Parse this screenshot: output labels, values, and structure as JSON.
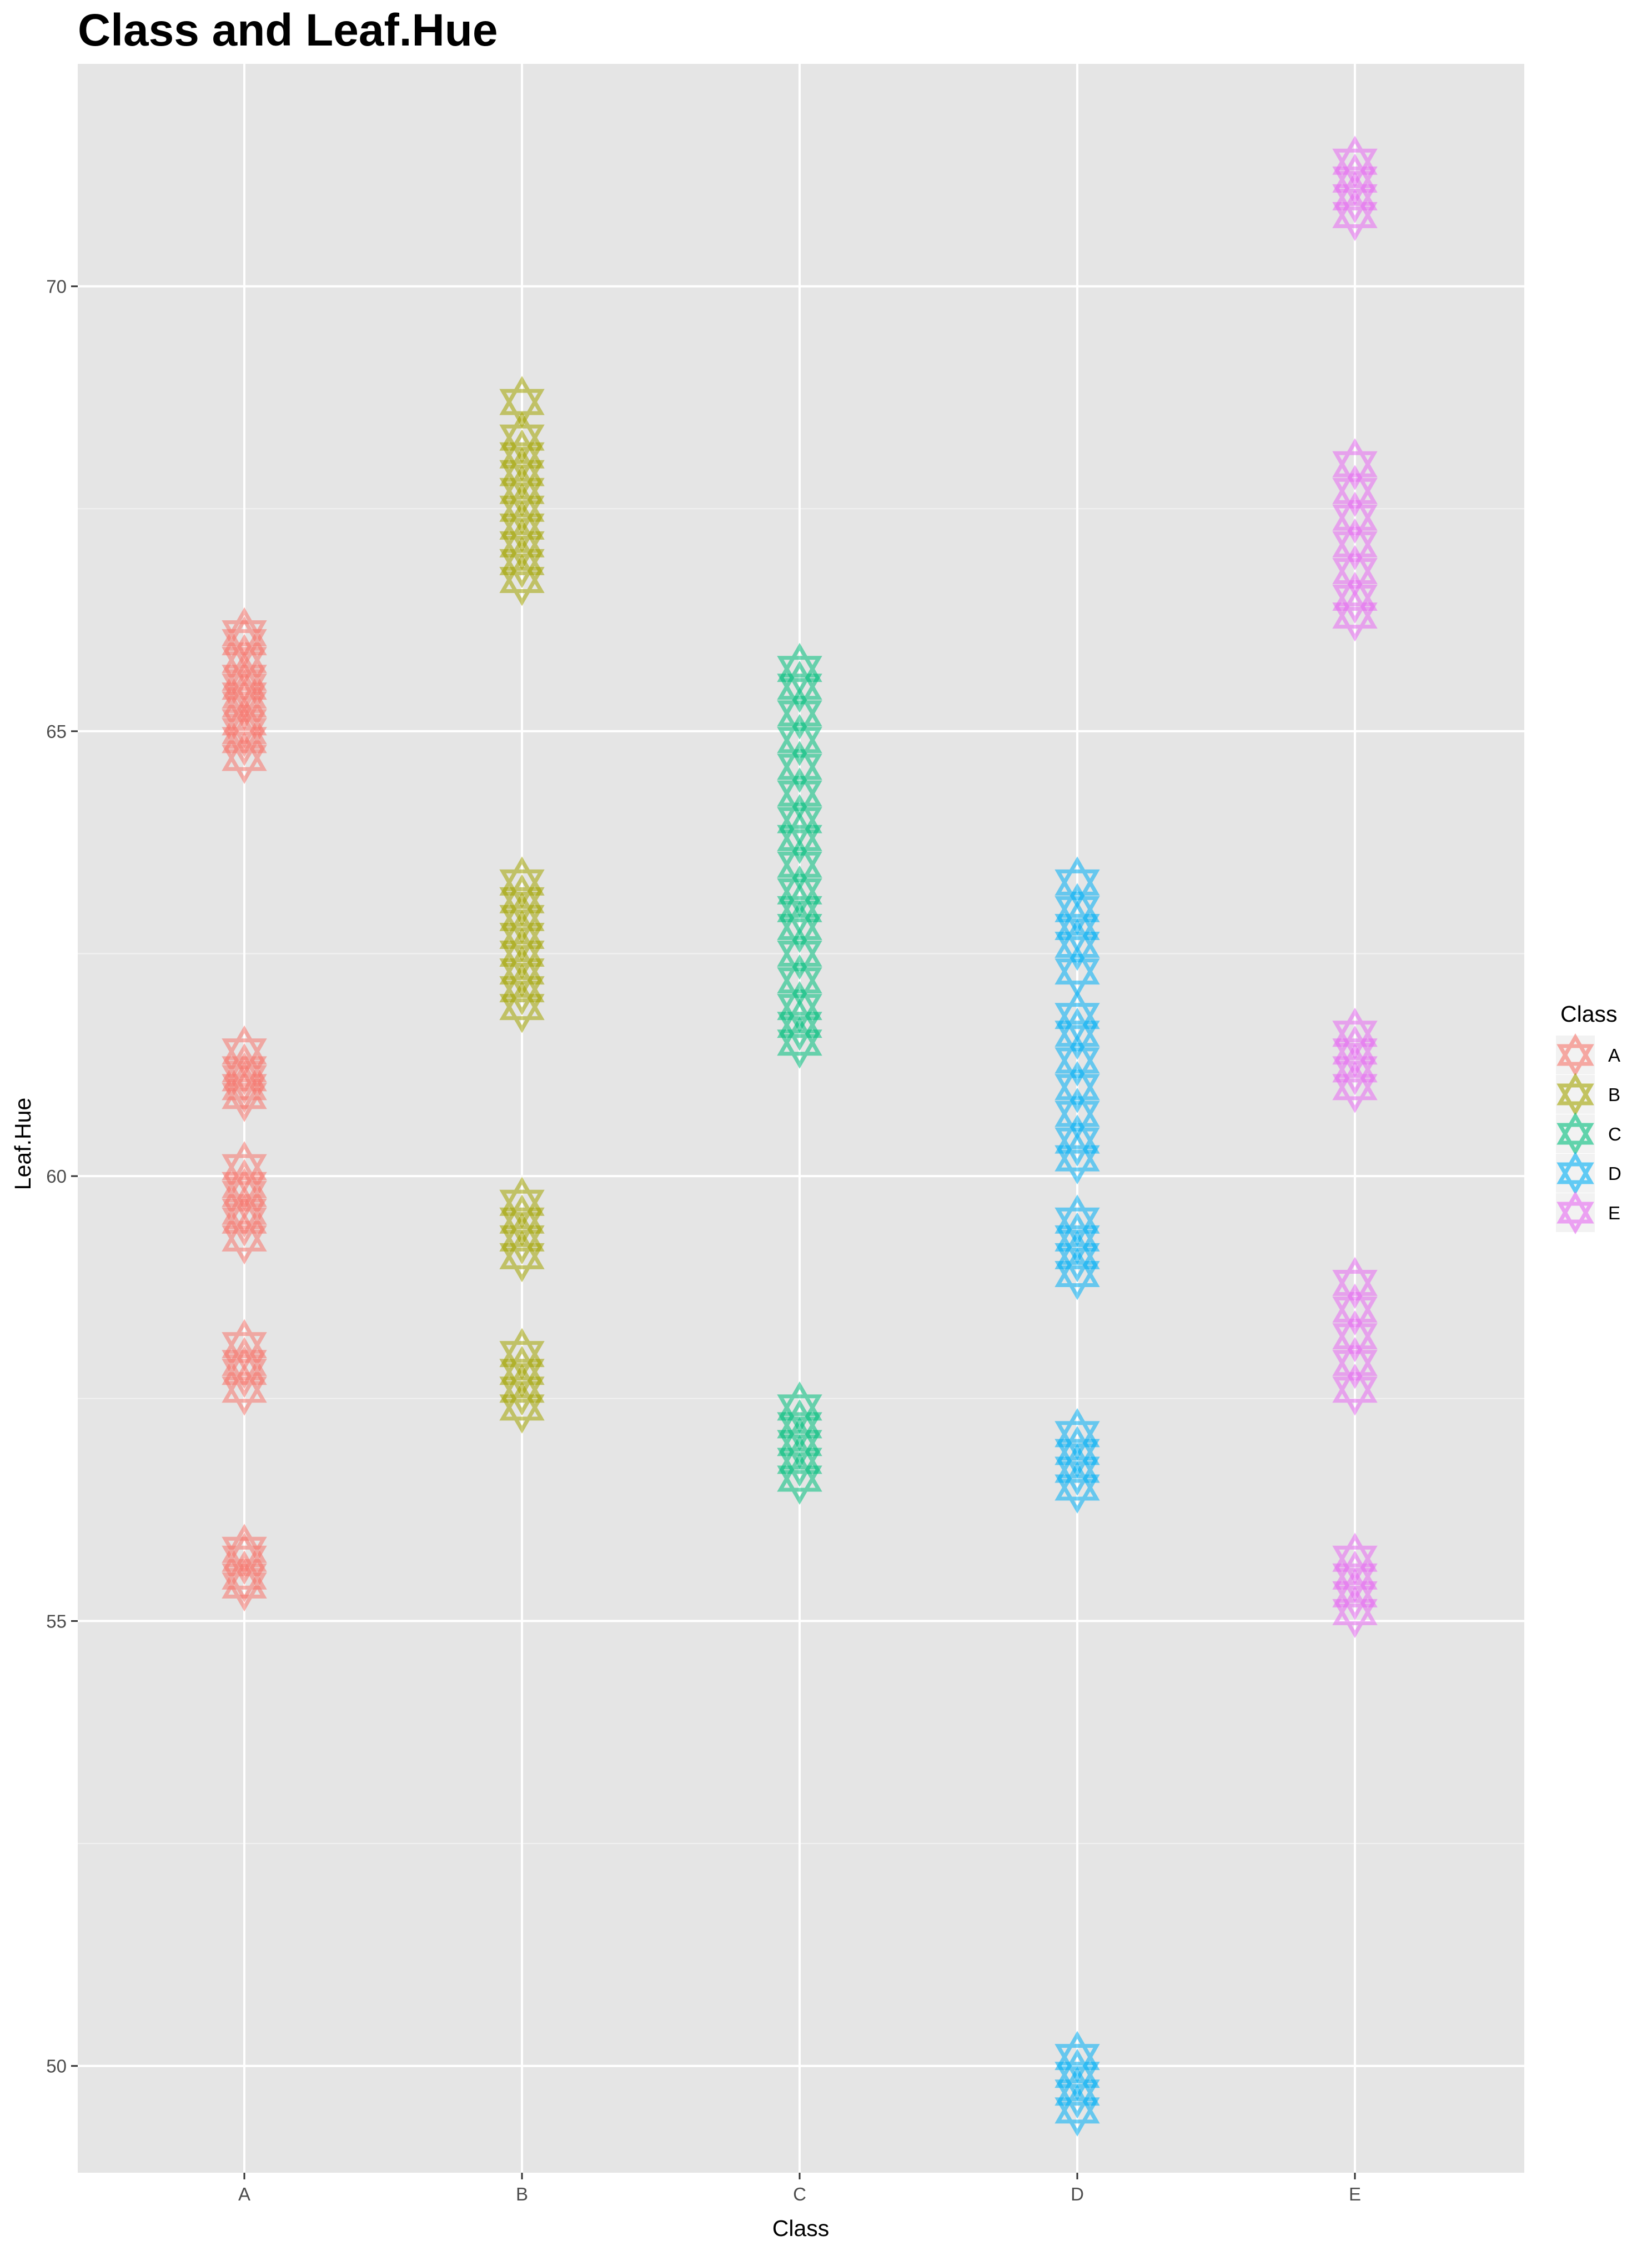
{
  "chart_data": {
    "type": "scatter",
    "title": "Class and Leaf.Hue",
    "xlabel": "Class",
    "ylabel": "Leaf.Hue",
    "categories": [
      "A",
      "B",
      "C",
      "D",
      "E"
    ],
    "ylim": [
      48.8,
      72.5
    ],
    "y_ticks": [
      "50",
      "55",
      "60",
      "65",
      "70"
    ],
    "y_tick_values": [
      50,
      55,
      60,
      65,
      70
    ],
    "grid": true,
    "marker": "star-of-david",
    "legend": {
      "title": "Class",
      "position": "right",
      "entries": [
        "A",
        "B",
        "C",
        "D",
        "E"
      ]
    },
    "colors": {
      "A": "#F8766D",
      "B": "#A3A500",
      "C": "#00BF7D",
      "D": "#00B0F6",
      "E": "#E76BF3"
    },
    "series": [
      {
        "name": "A",
        "category": "A",
        "values": [
          64.7,
          64.9,
          65.0,
          65.1,
          65.3,
          65.4,
          65.5,
          65.6,
          65.8,
          66.0,
          66.1,
          60.9,
          61.0,
          61.1,
          61.2,
          61.4,
          59.3,
          59.5,
          59.6,
          59.8,
          59.9,
          60.1,
          57.6,
          57.8,
          57.9,
          58.1,
          55.4,
          55.5,
          55.7,
          55.8
        ]
      },
      {
        "name": "B",
        "category": "B",
        "values": [
          66.7,
          66.9,
          67.1,
          67.3,
          67.5,
          67.7,
          67.9,
          68.1,
          68.3,
          68.7,
          61.9,
          62.1,
          62.3,
          62.5,
          62.7,
          62.9,
          63.1,
          63.3,
          59.1,
          59.3,
          59.5,
          59.7,
          57.4,
          57.6,
          57.8,
          58.0
        ]
      },
      {
        "name": "C",
        "category": "C",
        "values": [
          61.5,
          61.7,
          61.9,
          62.2,
          62.5,
          62.8,
          63.0,
          63.2,
          63.5,
          63.8,
          64.0,
          64.3,
          64.6,
          64.9,
          65.2,
          65.5,
          65.7,
          56.6,
          56.8,
          57.0,
          57.2,
          57.4
        ]
      },
      {
        "name": "D",
        "category": "D",
        "values": [
          62.3,
          62.6,
          62.8,
          63.0,
          63.3,
          60.2,
          60.4,
          60.7,
          61.0,
          61.3,
          61.6,
          61.8,
          58.9,
          59.1,
          59.3,
          59.5,
          56.5,
          56.7,
          56.9,
          57.1,
          49.5,
          49.7,
          49.9,
          50.1
        ]
      },
      {
        "name": "E",
        "category": "E",
        "values": [
          70.8,
          71.0,
          71.2,
          71.4,
          66.3,
          66.5,
          66.8,
          67.1,
          67.4,
          67.7,
          68.0,
          61.0,
          61.2,
          61.4,
          61.6,
          57.6,
          57.9,
          58.2,
          58.5,
          58.8,
          55.1,
          55.3,
          55.5,
          55.7
        ]
      }
    ]
  }
}
